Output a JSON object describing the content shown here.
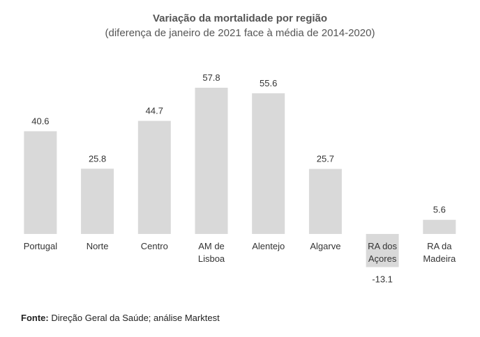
{
  "chart_data": {
    "type": "bar",
    "title": "Variação da mortalidade por região",
    "subtitle": "(diferença de janeiro de 2021 face à média de 2014-2020)",
    "xlabel": "",
    "ylabel": "",
    "grid": false,
    "legend": "none",
    "ylim": [
      -13.1,
      57.8
    ],
    "categories": [
      [
        "Portugal"
      ],
      [
        "Norte"
      ],
      [
        "Centro"
      ],
      [
        "AM de",
        "Lisboa"
      ],
      [
        "Alentejo"
      ],
      [
        "Algarve"
      ],
      [
        "RA dos",
        "Açores"
      ],
      [
        "RA da",
        "Madeira"
      ]
    ],
    "values": [
      40.6,
      25.8,
      44.7,
      57.8,
      55.6,
      25.7,
      -13.1,
      5.6
    ],
    "data_labels": [
      "40.6",
      "25.8",
      "44.7",
      "57.8",
      "55.6",
      "25.7",
      "-13.1",
      "5.6"
    ],
    "bar_color": "#d9d9d9"
  },
  "source": {
    "label": "Fonte:",
    "text": " Direção Geral da Saúde; análise Marktest"
  }
}
